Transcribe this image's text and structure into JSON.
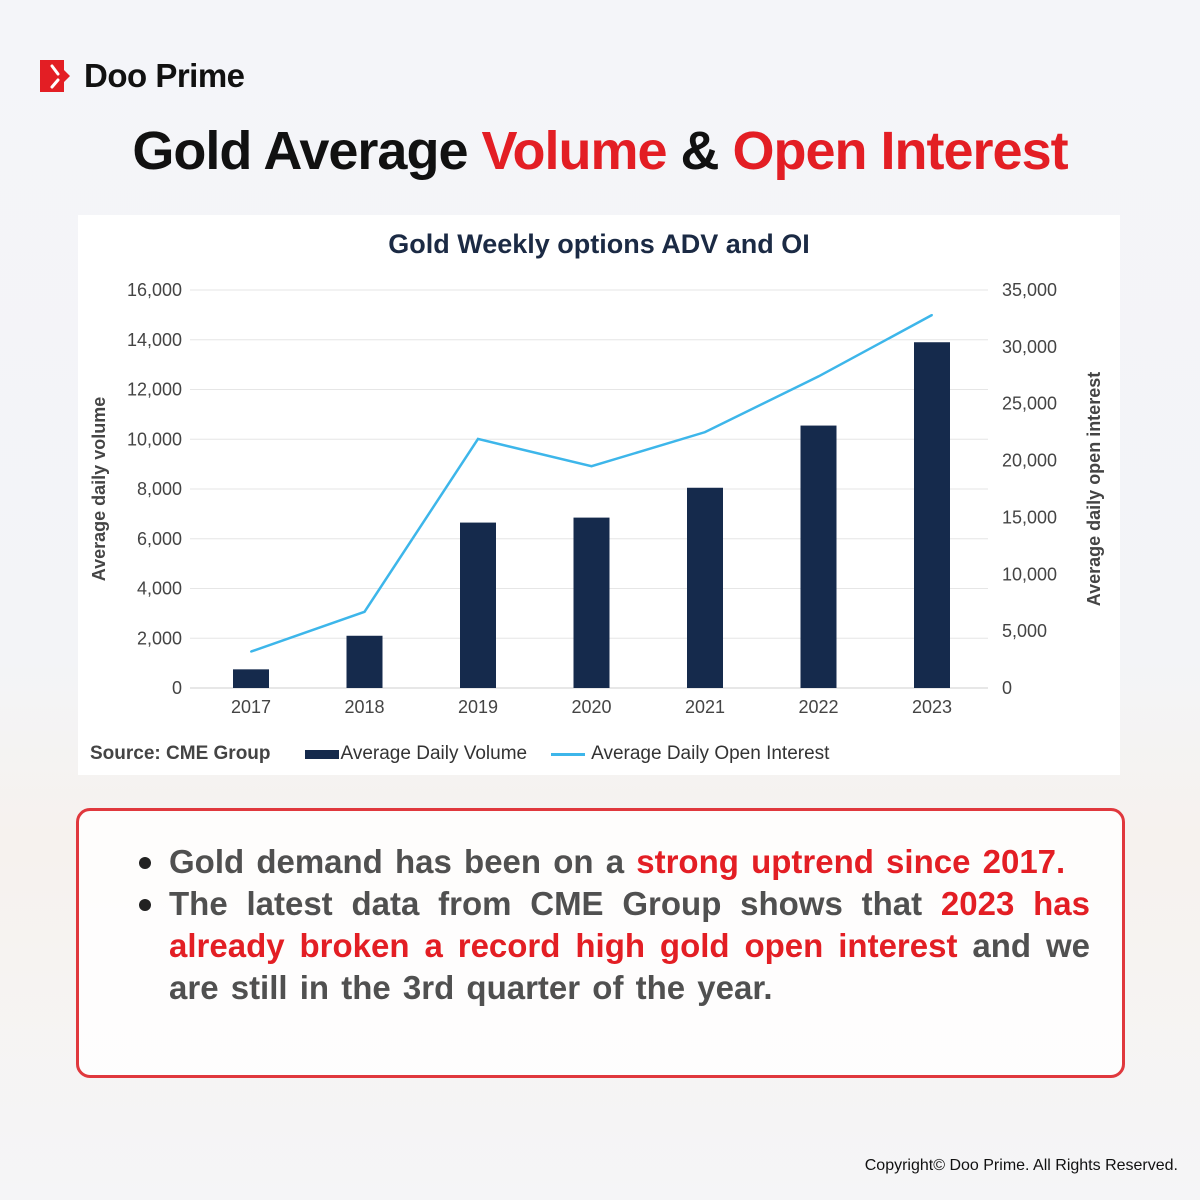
{
  "brand": {
    "name": "Doo Prime",
    "color": "#e31e24"
  },
  "title": {
    "part1": "Gold Average ",
    "part2": "Volume",
    "part3": " & ",
    "part4": "Open Interest"
  },
  "chart_data": {
    "type": "bar+line",
    "title": "Gold Weekly options ADV and OI",
    "categories": [
      "2017",
      "2018",
      "2019",
      "2020",
      "2021",
      "2022",
      "2023"
    ],
    "series": [
      {
        "name": "Average Daily Volume",
        "type": "bar",
        "axis": "left",
        "color": "#152a4c",
        "values": [
          750,
          2100,
          6650,
          6850,
          8050,
          10550,
          13900
        ]
      },
      {
        "name": "Average Daily Open Interest",
        "type": "line",
        "axis": "right",
        "color": "#3db6ea",
        "values": [
          3200,
          6700,
          21900,
          19500,
          22500,
          27400,
          32800
        ]
      }
    ],
    "ylabel": "Average daily volume",
    "ylim": [
      0,
      16000
    ],
    "yticks": [
      "0",
      "2,000",
      "4,000",
      "6,000",
      "8,000",
      "10,000",
      "12,000",
      "14,000",
      "16,000"
    ],
    "y2label": "Average daily open interest",
    "y2lim": [
      0,
      35000
    ],
    "y2ticks": [
      "0",
      "5,000",
      "10,000",
      "15,000",
      "20,000",
      "25,000",
      "30,000",
      "35,000"
    ],
    "grid": true,
    "legend": "bottom",
    "source": "Source: CME Group"
  },
  "bullets": [
    {
      "a": "Gold demand has been on a ",
      "b": "strong uptrend since 2017."
    },
    {
      "a": "The latest data from CME Group shows that ",
      "b": "2023 has already broken a record high gold open interest",
      "c": " and we are still in the 3rd quarter of the year."
    }
  ],
  "copyright": "Copyright© Doo Prime. All Rights Reserved."
}
